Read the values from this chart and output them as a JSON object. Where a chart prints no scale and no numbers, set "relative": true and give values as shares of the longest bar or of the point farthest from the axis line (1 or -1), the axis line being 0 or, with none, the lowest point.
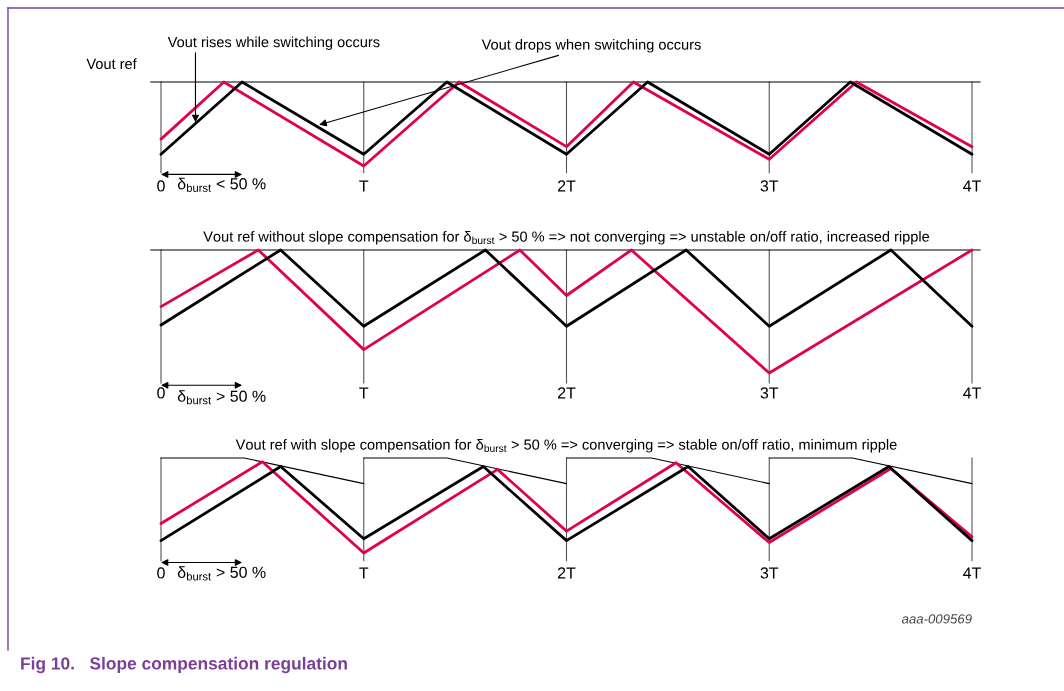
{
  "chart_data": [
    {
      "type": "line",
      "relative": true,
      "grid": "x",
      "marker": "none",
      "line_style": "solid",
      "xlim": [
        0,
        4
      ],
      "xticks": [
        {
          "value": 0,
          "label": "0"
        },
        {
          "value": 1,
          "label": "T"
        },
        {
          "value": 2,
          "label": "2T"
        },
        {
          "value": 3,
          "label": "3T"
        },
        {
          "value": 4,
          "label": "4T"
        }
      ],
      "ref_lines": [
        {
          "axis": "y",
          "value": 1,
          "label": "Vout ref",
          "color": "#000000"
        }
      ],
      "annotations": [
        {
          "text": "Vout rises while switching occurs",
          "x": 0.17,
          "y": 0.52
        },
        {
          "text": "Vout drops when switching occurs",
          "x": 0.78,
          "y": 0.49
        },
        "δ$_{burst}$ < 50 %"
      ],
      "series": [
        {
          "color": "#e0004d",
          "x": [
            0,
            0.31,
            1,
            1.47,
            2,
            2.33,
            3,
            3.43,
            4
          ],
          "values": [
            0.32,
            1,
            0,
            1,
            0.23,
            1,
            0.08,
            1,
            0.23
          ]
        },
        {
          "color": "#000000",
          "x": [
            0,
            0.4,
            1,
            1.41,
            2,
            2.4,
            3,
            3.4,
            4
          ],
          "values": [
            0.14,
            1,
            0.14,
            1,
            0.14,
            1,
            0.14,
            1,
            0.14
          ]
        }
      ]
    },
    {
      "type": "line",
      "relative": true,
      "grid": "x",
      "marker": "none",
      "line_style": "solid",
      "title": "Vout ref without slope compensation for δ$_{burst}$ > 50 % => not converging => unstable on/off ratio, increased ripple",
      "xlim": [
        0,
        4
      ],
      "xticks": [
        {
          "value": 0,
          "label": "0"
        },
        {
          "value": 1,
          "label": "T"
        },
        {
          "value": 2,
          "label": "2T"
        },
        {
          "value": 3,
          "label": "3T"
        },
        {
          "value": 4,
          "label": "4T"
        }
      ],
      "ref_lines": [
        {
          "axis": "y",
          "value": 1,
          "color": "#000000"
        }
      ],
      "annotations": [
        "δ$_{burst}$ > 50 %"
      ],
      "series": [
        {
          "color": "#e0004d",
          "x": [
            0,
            0.48,
            1,
            1.77,
            2,
            2.32,
            3,
            4
          ],
          "values": [
            0.54,
            1,
            0.19,
            1,
            0.63,
            1,
            0,
            1
          ]
        },
        {
          "color": "#000000",
          "x": [
            0,
            0.59,
            1,
            1.6,
            2,
            2.59,
            3,
            3.6,
            4
          ],
          "values": [
            0.39,
            1,
            0.38,
            1,
            0.38,
            1,
            0.38,
            1,
            0.38
          ]
        }
      ]
    },
    {
      "type": "line",
      "relative": true,
      "grid": "x",
      "marker": "none",
      "line_style": "solid",
      "title": "Vout ref with slope compensation for δ$_{burst}$ > 50 % => converging => stable on/off ratio, minimum ripple",
      "xlim": [
        0,
        4
      ],
      "xticks": [
        {
          "value": 0,
          "label": "0"
        },
        {
          "value": 1,
          "label": "T"
        },
        {
          "value": 2,
          "label": "2T"
        },
        {
          "value": 3,
          "label": "3T"
        },
        {
          "value": 4,
          "label": "4T"
        }
      ],
      "annotations": [
        "δ$_{burst}$ > 50 %",
        "aaa-009569",
        "Fig 10.   Slope compensation regulation"
      ],
      "series": [
        {
          "color": "#000000",
          "x": [
            0,
            0.41,
            1
          ],
          "values": [
            1,
            1,
            0.73
          ]
        },
        {
          "color": "#000000",
          "x": [
            1,
            1.41,
            2
          ],
          "values": [
            1,
            1,
            0.73
          ]
        },
        {
          "color": "#000000",
          "x": [
            2,
            2.42,
            3
          ],
          "values": [
            1,
            1,
            0.73
          ]
        },
        {
          "color": "#000000",
          "x": [
            3,
            3.41,
            4
          ],
          "values": [
            1,
            1,
            0.73
          ]
        },
        {
          "color": "#e0004d",
          "x": [
            0,
            0.5,
            1,
            1.66,
            2,
            2.54,
            3,
            3.6,
            4
          ],
          "values": [
            0.31,
            0.96,
            0,
            0.88,
            0.23,
            0.95,
            0.11,
            0.89,
            0.17
          ]
        },
        {
          "color": "#000000",
          "x": [
            0,
            0.59,
            1,
            1.59,
            2,
            2.6,
            3,
            3.59,
            4
          ],
          "values": [
            0.13,
            0.91,
            0.15,
            0.91,
            0.13,
            0.91,
            0.15,
            0.91,
            0.13
          ]
        }
      ]
    }
  ]
}
